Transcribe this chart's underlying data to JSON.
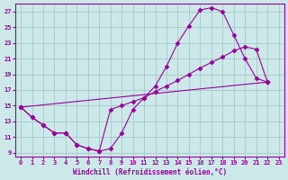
{
  "xlabel": "Windchill (Refroidissement éolien,°C)",
  "bg_color": "#cce8e8",
  "grid_color": "#aacccc",
  "line_color": "#990099",
  "xlim": [
    -0.5,
    23.5
  ],
  "ylim": [
    8.5,
    28
  ],
  "xticks": [
    0,
    1,
    2,
    3,
    4,
    5,
    6,
    7,
    8,
    9,
    10,
    11,
    12,
    13,
    14,
    15,
    16,
    17,
    18,
    19,
    20,
    21,
    22,
    23
  ],
  "yticks": [
    9,
    11,
    13,
    15,
    17,
    19,
    21,
    23,
    25,
    27
  ],
  "curve1_x": [
    0,
    1,
    2,
    3,
    4,
    5,
    6,
    7,
    8,
    9,
    10,
    11,
    12,
    13,
    14,
    15,
    16,
    17,
    18,
    19,
    20,
    21,
    22
  ],
  "curve1_y": [
    14.8,
    13.5,
    12.5,
    11.5,
    11.5,
    10.0,
    9.5,
    9.2,
    9.5,
    11.5,
    14.5,
    16.0,
    17.5,
    20.0,
    23.0,
    25.2,
    27.2,
    27.5,
    27.0,
    24.0,
    21.0,
    18.5,
    18.0
  ],
  "curve2_x": [
    0,
    1,
    2,
    3,
    4,
    5,
    6,
    7,
    8,
    9,
    10,
    11,
    12,
    13,
    14,
    15,
    16,
    17,
    18,
    19,
    20,
    21,
    22
  ],
  "curve2_y": [
    14.8,
    13.5,
    12.5,
    11.5,
    11.5,
    10.0,
    9.5,
    9.2,
    14.5,
    15.0,
    15.5,
    16.0,
    16.8,
    17.5,
    18.2,
    19.0,
    19.8,
    20.5,
    21.2,
    22.0,
    22.5,
    22.2,
    18.0
  ],
  "curve3_x": [
    0,
    22
  ],
  "curve3_y": [
    14.8,
    18.0
  ],
  "marker": "D",
  "marker_size": 2.5
}
